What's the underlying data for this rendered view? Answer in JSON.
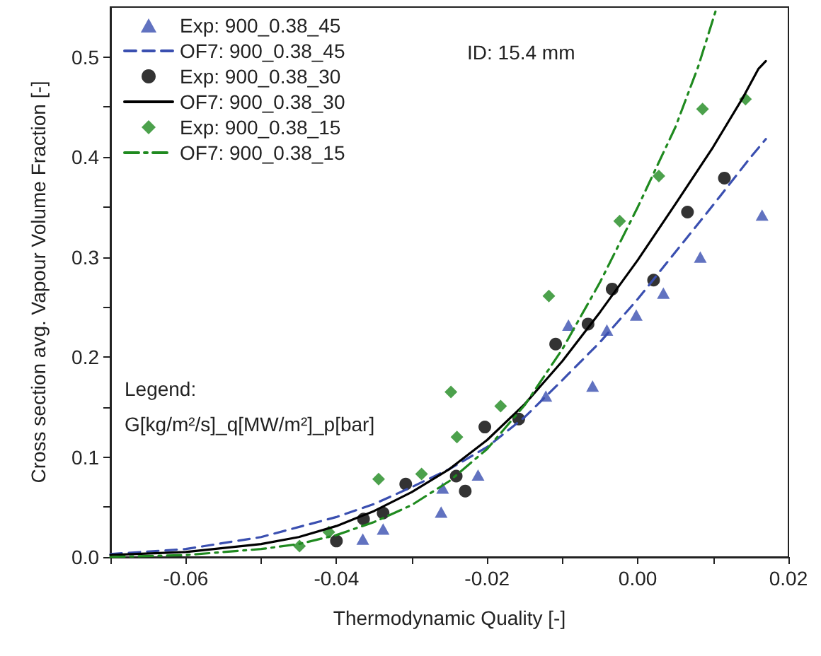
{
  "chart_data": {
    "type": "scatter",
    "xlabel": "Thermodynamic Quality [-]",
    "ylabel": "Cross section avg. Vapour Volume Fraction [-]",
    "xlim": [
      -0.07,
      0.02
    ],
    "ylim": [
      0,
      0.55
    ],
    "xticks": [
      {
        "value": -0.07,
        "label": null
      },
      {
        "value": -0.06,
        "label": "-0.06"
      },
      {
        "value": -0.05,
        "label": null
      },
      {
        "value": -0.04,
        "label": "-0.04"
      },
      {
        "value": -0.03,
        "label": null
      },
      {
        "value": -0.02,
        "label": "-0.02"
      },
      {
        "value": -0.01,
        "label": null
      },
      {
        "value": 0,
        "label": "0.00"
      },
      {
        "value": 0.01,
        "label": null
      },
      {
        "value": 0.02,
        "label": "0.02"
      }
    ],
    "yticks": [
      {
        "value": 0,
        "label": "0.0"
      },
      {
        "value": 0.05,
        "label": null
      },
      {
        "value": 0.1,
        "label": "0.1"
      },
      {
        "value": 0.15,
        "label": null
      },
      {
        "value": 0.2,
        "label": "0.2"
      },
      {
        "value": 0.25,
        "label": null
      },
      {
        "value": 0.3,
        "label": "0.3"
      },
      {
        "value": 0.35,
        "label": null
      },
      {
        "value": 0.4,
        "label": "0.4"
      },
      {
        "value": 0.45,
        "label": null
      },
      {
        "value": 0.5,
        "label": "0.5"
      }
    ],
    "grid": false,
    "legend": "top left",
    "annotations": [
      "ID: 15.4 mm",
      "Legend:",
      "G[kg/m²/s]_q[MW/m²]_p[bar]"
    ],
    "series": [
      {
        "name": "Exp: 900_0.38_45",
        "type": "scatter",
        "marker": "triangle",
        "color": "#3a4fb0",
        "x": [
          -0.0365,
          -0.0338,
          -0.0261,
          -0.0259,
          -0.0212,
          -0.0122,
          -0.0092,
          -0.006,
          -0.0041,
          -0.0002,
          0.0034,
          0.0083,
          0.0165
        ],
        "values": [
          0.018,
          0.028,
          0.045,
          0.069,
          0.082,
          0.161,
          0.232,
          0.171,
          0.227,
          0.242,
          0.264,
          0.3,
          0.342
        ]
      },
      {
        "name": "OF7: 900_0.38_45",
        "type": "line",
        "line_style": "dashed",
        "color": "#3a4fb0",
        "x": [
          -0.07,
          -0.06,
          -0.05,
          -0.04,
          -0.035,
          -0.03,
          -0.025,
          -0.02,
          -0.015,
          -0.01,
          -0.005,
          0,
          0.005,
          0.01,
          0.015,
          0.017
        ],
        "values": [
          0.003,
          0.008,
          0.02,
          0.04,
          0.053,
          0.07,
          0.088,
          0.11,
          0.14,
          0.177,
          0.215,
          0.258,
          0.305,
          0.352,
          0.4,
          0.418
        ]
      },
      {
        "name": "Exp: 900_0.38_30",
        "type": "scatter",
        "marker": "circle",
        "color": "#000000",
        "x": [
          -0.04,
          -0.0364,
          -0.0338,
          -0.0308,
          -0.0241,
          -0.0229,
          -0.0203,
          -0.0158,
          -0.0109,
          -0.0066,
          -0.0034,
          0.0021,
          0.0066,
          0.0115
        ],
        "values": [
          0.016,
          0.038,
          0.044,
          0.073,
          0.081,
          0.066,
          0.13,
          0.138,
          0.213,
          0.233,
          0.268,
          0.277,
          0.345,
          0.379
        ]
      },
      {
        "name": "OF7: 900_0.38_30",
        "type": "line",
        "line_style": "solid",
        "color": "#000000",
        "x": [
          -0.07,
          -0.06,
          -0.05,
          -0.045,
          -0.04,
          -0.035,
          -0.03,
          -0.025,
          -0.02,
          -0.015,
          -0.01,
          -0.005,
          0,
          0.005,
          0.01,
          0.014,
          0.016,
          0.017
        ],
        "values": [
          0.002,
          0.005,
          0.013,
          0.02,
          0.031,
          0.046,
          0.065,
          0.088,
          0.117,
          0.153,
          0.196,
          0.245,
          0.297,
          0.353,
          0.41,
          0.46,
          0.488,
          0.496
        ]
      },
      {
        "name": "Exp: 900_0.38_15",
        "type": "scatter",
        "marker": "diamond",
        "color": "#1f8a1f",
        "x": [
          -0.0449,
          -0.041,
          -0.0344,
          -0.0287,
          -0.0248,
          -0.024,
          -0.0182,
          -0.0118,
          -0.0024,
          0.0028,
          0.0086,
          0.0143
        ],
        "values": [
          0.011,
          0.025,
          0.078,
          0.083,
          0.165,
          0.12,
          0.151,
          0.261,
          0.336,
          0.381,
          0.448,
          0.458
        ]
      },
      {
        "name": "OF7: 900_0.38_15",
        "type": "line",
        "line_style": "dashdot",
        "color": "#1f8a1f",
        "x": [
          -0.07,
          -0.06,
          -0.05,
          -0.045,
          -0.04,
          -0.035,
          -0.03,
          -0.025,
          -0.02,
          -0.015,
          -0.01,
          -0.005,
          0,
          0.005,
          0.008,
          0.0105
        ],
        "values": [
          0,
          0.002,
          0.008,
          0.013,
          0.022,
          0.035,
          0.052,
          0.076,
          0.108,
          0.152,
          0.208,
          0.275,
          0.35,
          0.43,
          0.49,
          0.55
        ]
      }
    ]
  }
}
